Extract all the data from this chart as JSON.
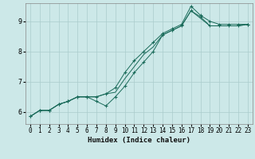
{
  "title": "",
  "xlabel": "Humidex (Indice chaleur)",
  "ylabel": "",
  "bg_color": "#cce8e8",
  "grid_color": "#aacccc",
  "line_color": "#1a6b5a",
  "xlim": [
    -0.5,
    23.5
  ],
  "ylim": [
    5.6,
    9.6
  ],
  "xticks": [
    0,
    1,
    2,
    3,
    4,
    5,
    6,
    7,
    8,
    9,
    10,
    11,
    12,
    13,
    14,
    15,
    16,
    17,
    18,
    19,
    20,
    21,
    22,
    23
  ],
  "yticks": [
    6,
    7,
    8,
    9
  ],
  "series": [
    {
      "x": [
        0,
        1,
        2,
        3,
        4,
        5,
        6,
        7,
        8,
        9,
        10,
        11,
        12,
        13,
        14,
        15,
        16,
        17,
        18,
        19,
        20,
        21,
        22,
        23
      ],
      "y": [
        5.85,
        6.05,
        6.05,
        6.25,
        6.35,
        6.5,
        6.5,
        6.35,
        6.2,
        6.5,
        6.85,
        7.3,
        7.65,
        8.0,
        8.55,
        8.7,
        8.85,
        9.35,
        9.15,
        8.85,
        8.85,
        8.85,
        8.85,
        8.9
      ],
      "marker": "+"
    },
    {
      "x": [
        0,
        1,
        2,
        3,
        4,
        5,
        6,
        7,
        8,
        9,
        10,
        11,
        12,
        13,
        14,
        15,
        16,
        17,
        18,
        19,
        20,
        21,
        22,
        23
      ],
      "y": [
        5.85,
        6.05,
        6.05,
        6.25,
        6.35,
        6.5,
        6.5,
        6.5,
        6.6,
        6.65,
        7.1,
        7.5,
        7.9,
        8.15,
        8.55,
        8.7,
        8.85,
        9.35,
        9.1,
        8.85,
        8.85,
        8.85,
        8.85,
        8.9
      ],
      "marker": null
    },
    {
      "x": [
        0,
        1,
        2,
        3,
        4,
        5,
        6,
        7,
        8,
        9,
        10,
        11,
        12,
        13,
        14,
        15,
        16,
        17,
        18,
        19,
        20,
        21,
        22,
        23
      ],
      "y": [
        5.85,
        6.05,
        6.05,
        6.25,
        6.35,
        6.5,
        6.5,
        6.5,
        6.6,
        6.8,
        7.3,
        7.7,
        8.0,
        8.3,
        8.6,
        8.75,
        8.9,
        9.5,
        9.2,
        9.0,
        8.9,
        8.9,
        8.9,
        8.9
      ],
      "marker": "+"
    }
  ]
}
